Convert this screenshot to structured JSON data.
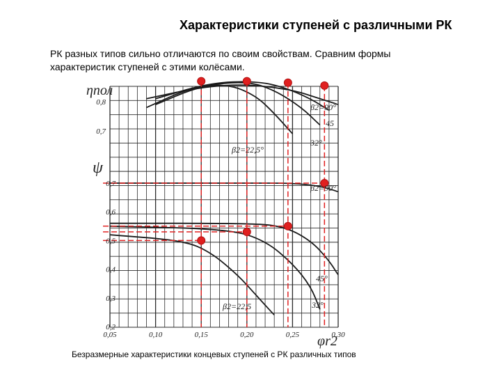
{
  "slide": {
    "title": "Характеристики ступеней с различными РК",
    "intro_line1": "РК разных типов сильно отличаются по своим свойствам. Сравним формы",
    "intro_line2": "характеристик ступеней с этими колёсами.",
    "caption": "Безразмерные характеристики концевых ступеней  с РК различных типов"
  },
  "chart_data": {
    "type": "line",
    "x_label": "φr2",
    "x_ticks": [
      "0,05",
      "0,10",
      "0,15",
      "0,20",
      "0,25",
      "0,30"
    ],
    "xlim": [
      0.05,
      0.3
    ],
    "top_panel": {
      "y_label": "ηпол",
      "y_ticks": [
        "0,7",
        "0,8"
      ],
      "series": [
        {
          "name": "β2=90°",
          "x": [
            0.09,
            0.15,
            0.2,
            0.25,
            0.275,
            0.3
          ],
          "y": [
            0.81,
            0.85,
            0.86,
            0.84,
            0.815,
            0.79
          ]
        },
        {
          "name": "45",
          "x": [
            0.1,
            0.16,
            0.21,
            0.24,
            0.27,
            0.29
          ],
          "y": [
            0.81,
            0.865,
            0.87,
            0.85,
            0.81,
            0.77
          ]
        },
        {
          "name": "32°",
          "x": [
            0.1,
            0.15,
            0.2,
            0.23,
            0.26,
            0.28
          ],
          "y": [
            0.79,
            0.855,
            0.87,
            0.84,
            0.78,
            0.72
          ]
        },
        {
          "name": "β2=22,5°",
          "x": [
            0.09,
            0.14,
            0.18,
            0.21,
            0.23,
            0.25
          ],
          "y": [
            0.78,
            0.85,
            0.86,
            0.82,
            0.76,
            0.69
          ]
        }
      ],
      "maxima": [
        {
          "x": 0.15,
          "y": 0.87
        },
        {
          "x": 0.2,
          "y": 0.87
        },
        {
          "x": 0.245,
          "y": 0.865
        },
        {
          "x": 0.285,
          "y": 0.855
        }
      ]
    },
    "bottom_panel": {
      "y_label": "ψ",
      "y_ticks": [
        "0,2",
        "0,3",
        "0,4",
        "0,5",
        "0,6",
        "0,7"
      ],
      "ylim": [
        0.2,
        0.7
      ],
      "series": [
        {
          "name": "β2=90°",
          "x": [
            0.05,
            0.2,
            0.25,
            0.28,
            0.3
          ],
          "y": [
            0.7,
            0.7,
            0.7,
            0.69,
            0.67
          ]
        },
        {
          "name": "45°",
          "x": [
            0.05,
            0.2,
            0.24,
            0.27,
            0.29,
            0.3
          ],
          "y": [
            0.56,
            0.56,
            0.55,
            0.5,
            0.43,
            0.38
          ]
        },
        {
          "name": "32°",
          "x": [
            0.05,
            0.18,
            0.22,
            0.25,
            0.27,
            0.28
          ],
          "y": [
            0.55,
            0.54,
            0.5,
            0.42,
            0.34,
            0.26
          ]
        },
        {
          "name": "β2=22,5°",
          "x": [
            0.05,
            0.13,
            0.16,
            0.19,
            0.21,
            0.23
          ],
          "y": [
            0.52,
            0.5,
            0.46,
            0.38,
            0.31,
            0.24
          ]
        }
      ],
      "operating_points": [
        {
          "x": 0.15,
          "y": 0.5
        },
        {
          "x": 0.2,
          "y": 0.53
        },
        {
          "x": 0.245,
          "y": 0.55
        },
        {
          "x": 0.285,
          "y": 0.7
        }
      ]
    },
    "labels": {
      "b90_top": "β2=90°",
      "n45_top": "45",
      "n32_top": "32°",
      "b225_top": "β2=22,5°",
      "b90_bot": "β2=90°",
      "n45_bot": "45°",
      "n32_bot": "32°",
      "b225_bot": "β2=22,5"
    },
    "colors": {
      "curve": "#1a1a1a",
      "grid": "#2a2a2a",
      "marker": "#e02020",
      "guide": "#e02020"
    }
  }
}
